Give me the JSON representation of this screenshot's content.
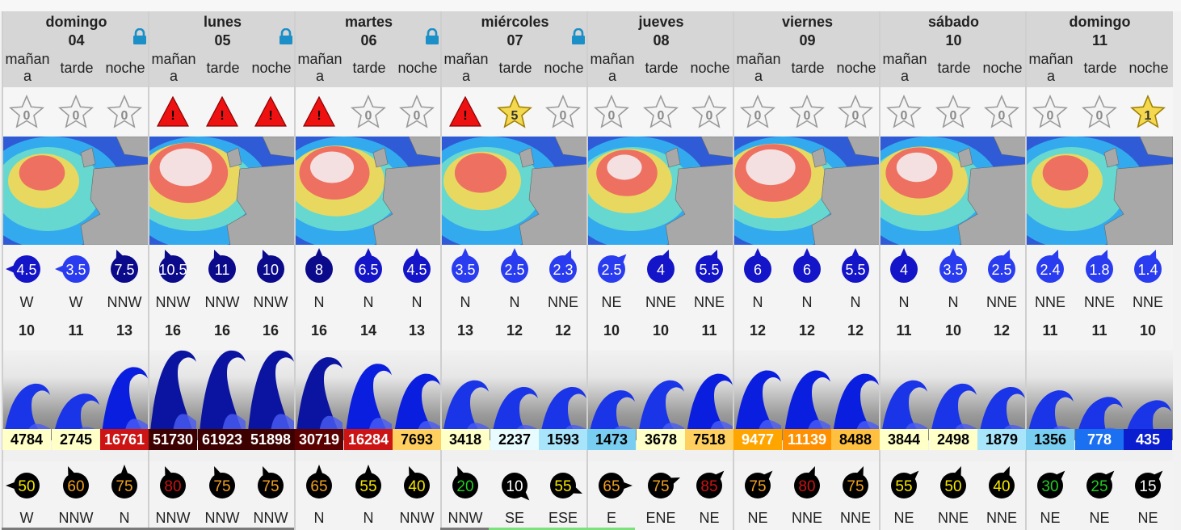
{
  "slot_labels": [
    "mañan a",
    "tarde",
    "noche"
  ],
  "days": [
    {
      "name": "domingo",
      "num": "04",
      "locked": true
    },
    {
      "name": "lunes",
      "num": "05",
      "locked": true
    },
    {
      "name": "martes",
      "num": "06",
      "locked": true
    },
    {
      "name": "miércoles",
      "num": "07",
      "locked": true
    },
    {
      "name": "jueves",
      "num": "08",
      "locked": false
    },
    {
      "name": "viernes",
      "num": "09",
      "locked": false
    },
    {
      "name": "sábado",
      "num": "10",
      "locked": false
    },
    {
      "name": "domingo",
      "num": "11",
      "locked": false
    }
  ],
  "periods": [
    {
      "rating": "star",
      "rating_value": "0",
      "wind_speed": "4.5",
      "wind_dir": "W",
      "wave_period": "10",
      "energy": "4784",
      "energy_color": "#ffffc8",
      "energy_text": "#000",
      "swell_score": "50",
      "score_color": "#f5e600",
      "swell_dir": "W",
      "wave_size": 0.5
    },
    {
      "rating": "star",
      "rating_value": "0",
      "wind_speed": "3.5",
      "wind_dir": "W",
      "wave_period": "11",
      "energy": "2745",
      "energy_color": "#ffffc8",
      "energy_text": "#000",
      "swell_score": "60",
      "score_color": "#f0a020",
      "swell_dir": "NNW",
      "wave_size": 0.35
    },
    {
      "rating": "star",
      "rating_value": "0",
      "wind_speed": "7.5",
      "wind_dir": "NNW",
      "wave_period": "13",
      "energy": "16761",
      "energy_color": "#cc1414",
      "energy_text": "#fff",
      "swell_score": "75",
      "score_color": "#f0a020",
      "swell_dir": "N",
      "wave_size": 0.75
    },
    {
      "rating": "warning",
      "rating_value": "!",
      "wind_speed": "10.5",
      "wind_dir": "NNW",
      "wave_period": "16",
      "energy": "51730",
      "energy_color": "#3c0000",
      "energy_text": "#fff",
      "swell_score": "80",
      "score_color": "#cc1414",
      "swell_dir": "NNW",
      "wave_size": 1.0
    },
    {
      "rating": "warning",
      "rating_value": "!",
      "wind_speed": "11",
      "wind_dir": "NNW",
      "wave_period": "16",
      "energy": "61923",
      "energy_color": "#3c0000",
      "energy_text": "#fff",
      "swell_score": "75",
      "score_color": "#f0a020",
      "swell_dir": "NNW",
      "wave_size": 1.0
    },
    {
      "rating": "warning",
      "rating_value": "!",
      "wind_speed": "10",
      "wind_dir": "NNW",
      "wave_period": "16",
      "energy": "51898",
      "energy_color": "#3c0000",
      "energy_text": "#fff",
      "swell_score": "75",
      "score_color": "#f0a020",
      "swell_dir": "NNW",
      "wave_size": 1.0
    },
    {
      "rating": "warning",
      "rating_value": "!",
      "wind_speed": "8",
      "wind_dir": "N",
      "wave_period": "16",
      "energy": "30719",
      "energy_color": "#5a0000",
      "energy_text": "#fff",
      "swell_score": "65",
      "score_color": "#f0a020",
      "swell_dir": "N",
      "wave_size": 0.9
    },
    {
      "rating": "star",
      "rating_value": "0",
      "wind_speed": "6.5",
      "wind_dir": "N",
      "wave_period": "14",
      "energy": "16284",
      "energy_color": "#cc1414",
      "energy_text": "#fff",
      "swell_score": "55",
      "score_color": "#f5e600",
      "swell_dir": "N",
      "wave_size": 0.8
    },
    {
      "rating": "star",
      "rating_value": "0",
      "wind_speed": "4.5",
      "wind_dir": "N",
      "wave_period": "13",
      "energy": "7693",
      "energy_color": "#ffd060",
      "energy_text": "#000",
      "swell_score": "40",
      "score_color": "#f5e600",
      "swell_dir": "NNW",
      "wave_size": 0.65
    },
    {
      "rating": "warning",
      "rating_value": "!",
      "wind_speed": "3.5",
      "wind_dir": "N",
      "wave_period": "13",
      "energy": "3418",
      "energy_color": "#ffffc8",
      "energy_text": "#000",
      "swell_score": "20",
      "score_color": "#22cc22",
      "swell_dir": "NNW",
      "wave_size": 0.55
    },
    {
      "rating": "gold",
      "rating_value": "5",
      "wind_speed": "2.5",
      "wind_dir": "N",
      "wave_period": "12",
      "energy": "2237",
      "energy_color": "#e8fbff",
      "energy_text": "#000",
      "swell_score": "10",
      "score_color": "#ffffff",
      "swell_dir": "SE",
      "wave_size": 0.45
    },
    {
      "rating": "star",
      "rating_value": "0",
      "wind_speed": "2.3",
      "wind_dir": "NNE",
      "wave_period": "12",
      "energy": "1593",
      "energy_color": "#a8e4fa",
      "energy_text": "#000",
      "swell_score": "55",
      "score_color": "#f5e600",
      "swell_dir": "ESE",
      "wave_size": 0.45
    },
    {
      "rating": "star",
      "rating_value": "0",
      "wind_speed": "2.5",
      "wind_dir": "NE",
      "wave_period": "10",
      "energy": "1473",
      "energy_color": "#78cdf0",
      "energy_text": "#000",
      "swell_score": "65",
      "score_color": "#f0a020",
      "swell_dir": "E",
      "wave_size": 0.4
    },
    {
      "rating": "star",
      "rating_value": "0",
      "wind_speed": "4",
      "wind_dir": "NNE",
      "wave_period": "10",
      "energy": "3678",
      "energy_color": "#ffffc8",
      "energy_text": "#000",
      "swell_score": "75",
      "score_color": "#f0a020",
      "swell_dir": "ENE",
      "wave_size": 0.55
    },
    {
      "rating": "star",
      "rating_value": "0",
      "wind_speed": "5.5",
      "wind_dir": "NNE",
      "wave_period": "11",
      "energy": "7518",
      "energy_color": "#ffd060",
      "energy_text": "#000",
      "swell_score": "85",
      "score_color": "#cc1414",
      "swell_dir": "NE",
      "wave_size": 0.65
    },
    {
      "rating": "star",
      "rating_value": "0",
      "wind_speed": "6",
      "wind_dir": "N",
      "wave_period": "12",
      "energy": "9477",
      "energy_color": "#ffa500",
      "energy_text": "#fff",
      "swell_score": "75",
      "score_color": "#f0a020",
      "swell_dir": "NE",
      "wave_size": 0.7
    },
    {
      "rating": "star",
      "rating_value": "0",
      "wind_speed": "6",
      "wind_dir": "N",
      "wave_period": "12",
      "energy": "11139",
      "energy_color": "#ff9000",
      "energy_text": "#fff",
      "swell_score": "80",
      "score_color": "#cc1414",
      "swell_dir": "NNE",
      "wave_size": 0.7
    },
    {
      "rating": "star",
      "rating_value": "0",
      "wind_speed": "5.5",
      "wind_dir": "N",
      "wave_period": "12",
      "energy": "8488",
      "energy_color": "#ffc040",
      "energy_text": "#000",
      "swell_score": "75",
      "score_color": "#f0a020",
      "swell_dir": "NNE",
      "wave_size": 0.65
    },
    {
      "rating": "star",
      "rating_value": "0",
      "wind_speed": "4",
      "wind_dir": "N",
      "wave_period": "11",
      "energy": "3844",
      "energy_color": "#ffffc8",
      "energy_text": "#000",
      "swell_score": "55",
      "score_color": "#f5e600",
      "swell_dir": "NE",
      "wave_size": 0.55
    },
    {
      "rating": "star",
      "rating_value": "0",
      "wind_speed": "3.5",
      "wind_dir": "N",
      "wave_period": "10",
      "energy": "2498",
      "energy_color": "#ffffc8",
      "energy_text": "#000",
      "swell_score": "50",
      "score_color": "#f5e600",
      "swell_dir": "NNE",
      "wave_size": 0.5
    },
    {
      "rating": "star",
      "rating_value": "0",
      "wind_speed": "2.5",
      "wind_dir": "NNE",
      "wave_period": "12",
      "energy": "1879",
      "energy_color": "#a8e4fa",
      "energy_text": "#000",
      "swell_score": "40",
      "score_color": "#f5e600",
      "swell_dir": "NNE",
      "wave_size": 0.45
    },
    {
      "rating": "star",
      "rating_value": "0",
      "wind_speed": "2.4",
      "wind_dir": "NNE",
      "wave_period": "11",
      "energy": "1356",
      "energy_color": "#78cdf0",
      "energy_text": "#000",
      "swell_score": "30",
      "score_color": "#22cc22",
      "swell_dir": "NE",
      "wave_size": 0.4
    },
    {
      "rating": "star",
      "rating_value": "0",
      "wind_speed": "1.8",
      "wind_dir": "NNE",
      "wave_period": "11",
      "energy": "778",
      "energy_color": "#1a70f0",
      "energy_text": "#fff",
      "swell_score": "25",
      "score_color": "#22cc22",
      "swell_dir": "NE",
      "wave_size": 0.3
    },
    {
      "rating": "gold",
      "rating_value": "1",
      "wind_speed": "1.4",
      "wind_dir": "NNE",
      "wave_period": "10",
      "energy": "435",
      "energy_color": "#0a1ed0",
      "energy_text": "#fff",
      "swell_score": "15",
      "score_color": "#ffffff",
      "swell_dir": "NE",
      "wave_size": 0.25
    }
  ]
}
